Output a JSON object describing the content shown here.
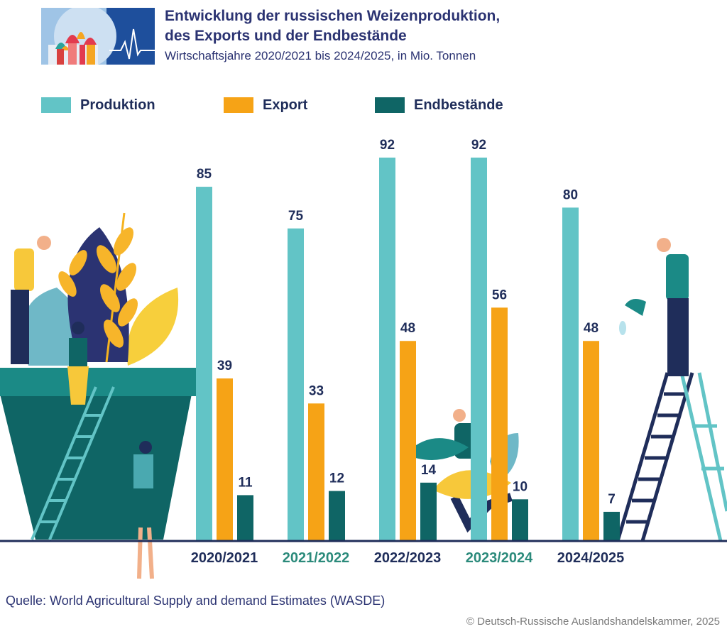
{
  "header": {
    "title_line1": "Entwicklung der russischen Weizenproduktion,",
    "title_line2": "des Exports und der Endbestände",
    "subtitle": "Wirtschaftsjahre 2020/2021 bis 2024/2025, in Mio. Tonnen"
  },
  "colors": {
    "production": "#62c4c6",
    "export": "#f6a316",
    "stocks": "#0f6565",
    "dark_label": "#1f2d5a",
    "teal_label": "#2b8a7b"
  },
  "chart_data": {
    "type": "bar",
    "title": "Entwicklung der russischen Weizenproduktion, des Exports und der Endbestände",
    "subtitle": "Wirtschaftsjahre 2020/2021 bis 2024/2025, in Mio. Tonnen",
    "xlabel": "",
    "ylabel": "",
    "ylim": [
      0,
      100
    ],
    "grid": false,
    "legend_position": "top",
    "categories": [
      "2020/2021",
      "2021/2022",
      "2022/2023",
      "2023/2024",
      "2024/2025"
    ],
    "series": [
      {
        "name": "Produktion",
        "values": [
          85,
          75,
          92,
          92,
          80
        ]
      },
      {
        "name": "Export",
        "values": [
          39,
          33,
          48,
          56,
          48
        ]
      },
      {
        "name": "Endbestände",
        "values": [
          11,
          12,
          14,
          10,
          7
        ]
      }
    ]
  },
  "footer": {
    "source": "Quelle: World Agricultural Supply and demand Estimates (WASDE)",
    "copyright": "© Deutsch-Russische Auslandshandelskammer, 2025"
  }
}
